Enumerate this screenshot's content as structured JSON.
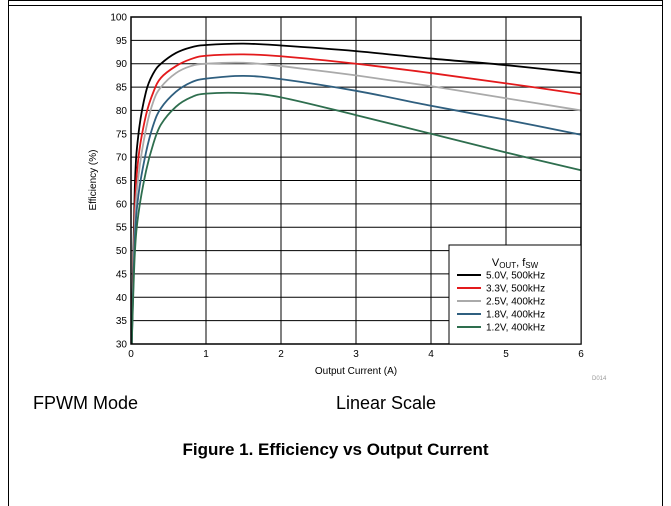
{
  "chart_data": {
    "type": "line",
    "xlabel": "Output Current (A)",
    "ylabel": "Efficiency (%)",
    "xlim": [
      0,
      6
    ],
    "ylim": [
      30,
      100
    ],
    "xticks": [
      "0",
      "1",
      "2",
      "3",
      "4",
      "5",
      "6"
    ],
    "yticks": [
      "30",
      "35",
      "40",
      "45",
      "50",
      "55",
      "60",
      "65",
      "70",
      "75",
      "80",
      "85",
      "90",
      "95",
      "100"
    ],
    "grid": true,
    "legend_position": "bottom-right",
    "legend_title_main": "V",
    "legend_title_sub1": "OUT",
    "legend_title_mid": ", f",
    "legend_title_sub2": "SW",
    "series": [
      {
        "name": "5.0V, 500kHz",
        "color": "#000000",
        "points": [
          [
            0.01,
            30
          ],
          [
            0.05,
            63
          ],
          [
            0.1,
            75
          ],
          [
            0.2,
            84
          ],
          [
            0.3,
            88
          ],
          [
            0.4,
            90
          ],
          [
            0.6,
            92.3
          ],
          [
            0.8,
            93.5
          ],
          [
            1.0,
            94.0
          ],
          [
            1.5,
            94.3
          ],
          [
            2.0,
            93.9
          ],
          [
            3.0,
            92.7
          ],
          [
            4.0,
            91.1
          ],
          [
            5.0,
            89.7
          ],
          [
            6.0,
            88.0
          ]
        ]
      },
      {
        "name": "3.3V, 500kHz",
        "color": "#e31a1c",
        "points": [
          [
            0.01,
            30
          ],
          [
            0.05,
            58
          ],
          [
            0.1,
            70
          ],
          [
            0.2,
            79
          ],
          [
            0.3,
            84
          ],
          [
            0.4,
            87
          ],
          [
            0.6,
            89.5
          ],
          [
            0.8,
            91
          ],
          [
            1.0,
            91.7
          ],
          [
            1.5,
            92.0
          ],
          [
            2.0,
            91.6
          ],
          [
            3.0,
            90.0
          ],
          [
            4.0,
            88.0
          ],
          [
            5.0,
            85.8
          ],
          [
            6.0,
            83.5
          ]
        ]
      },
      {
        "name": "2.5V, 400kHz",
        "color": "#aaaaaa",
        "points": [
          [
            0.01,
            30
          ],
          [
            0.05,
            55
          ],
          [
            0.1,
            66
          ],
          [
            0.2,
            76
          ],
          [
            0.3,
            82
          ],
          [
            0.4,
            85
          ],
          [
            0.6,
            88
          ],
          [
            0.8,
            89.5
          ],
          [
            1.0,
            90.0
          ],
          [
            1.5,
            90.2
          ],
          [
            2.0,
            89.5
          ],
          [
            3.0,
            87.5
          ],
          [
            4.0,
            85.2
          ],
          [
            5.0,
            82.6
          ],
          [
            6.0,
            80.0
          ]
        ]
      },
      {
        "name": "1.8V, 400kHz",
        "color": "#2f5f7f",
        "points": [
          [
            0.01,
            30
          ],
          [
            0.05,
            52
          ],
          [
            0.1,
            62
          ],
          [
            0.2,
            71
          ],
          [
            0.3,
            77
          ],
          [
            0.4,
            80.5
          ],
          [
            0.6,
            84
          ],
          [
            0.8,
            86
          ],
          [
            1.0,
            86.8
          ],
          [
            1.5,
            87.4
          ],
          [
            2.0,
            86.7
          ],
          [
            3.0,
            84.2
          ],
          [
            4.0,
            81.0
          ],
          [
            5.0,
            78.0
          ],
          [
            6.0,
            74.8
          ]
        ]
      },
      {
        "name": "1.2V, 400kHz",
        "color": "#2e6e4e",
        "points": [
          [
            0.01,
            30
          ],
          [
            0.05,
            49
          ],
          [
            0.1,
            58
          ],
          [
            0.2,
            67
          ],
          [
            0.3,
            73
          ],
          [
            0.4,
            77
          ],
          [
            0.6,
            80.8
          ],
          [
            0.8,
            82.8
          ],
          [
            1.0,
            83.6
          ],
          [
            1.5,
            83.7
          ],
          [
            2.0,
            82.8
          ],
          [
            3.0,
            79.0
          ],
          [
            4.0,
            75.0
          ],
          [
            5.0,
            71.0
          ],
          [
            6.0,
            67.2
          ]
        ]
      }
    ]
  },
  "notes": {
    "mode": "FPWM Mode",
    "scale": "Linear Scale",
    "code": "D014"
  },
  "caption": "Figure 1. Efficiency vs Output Current"
}
